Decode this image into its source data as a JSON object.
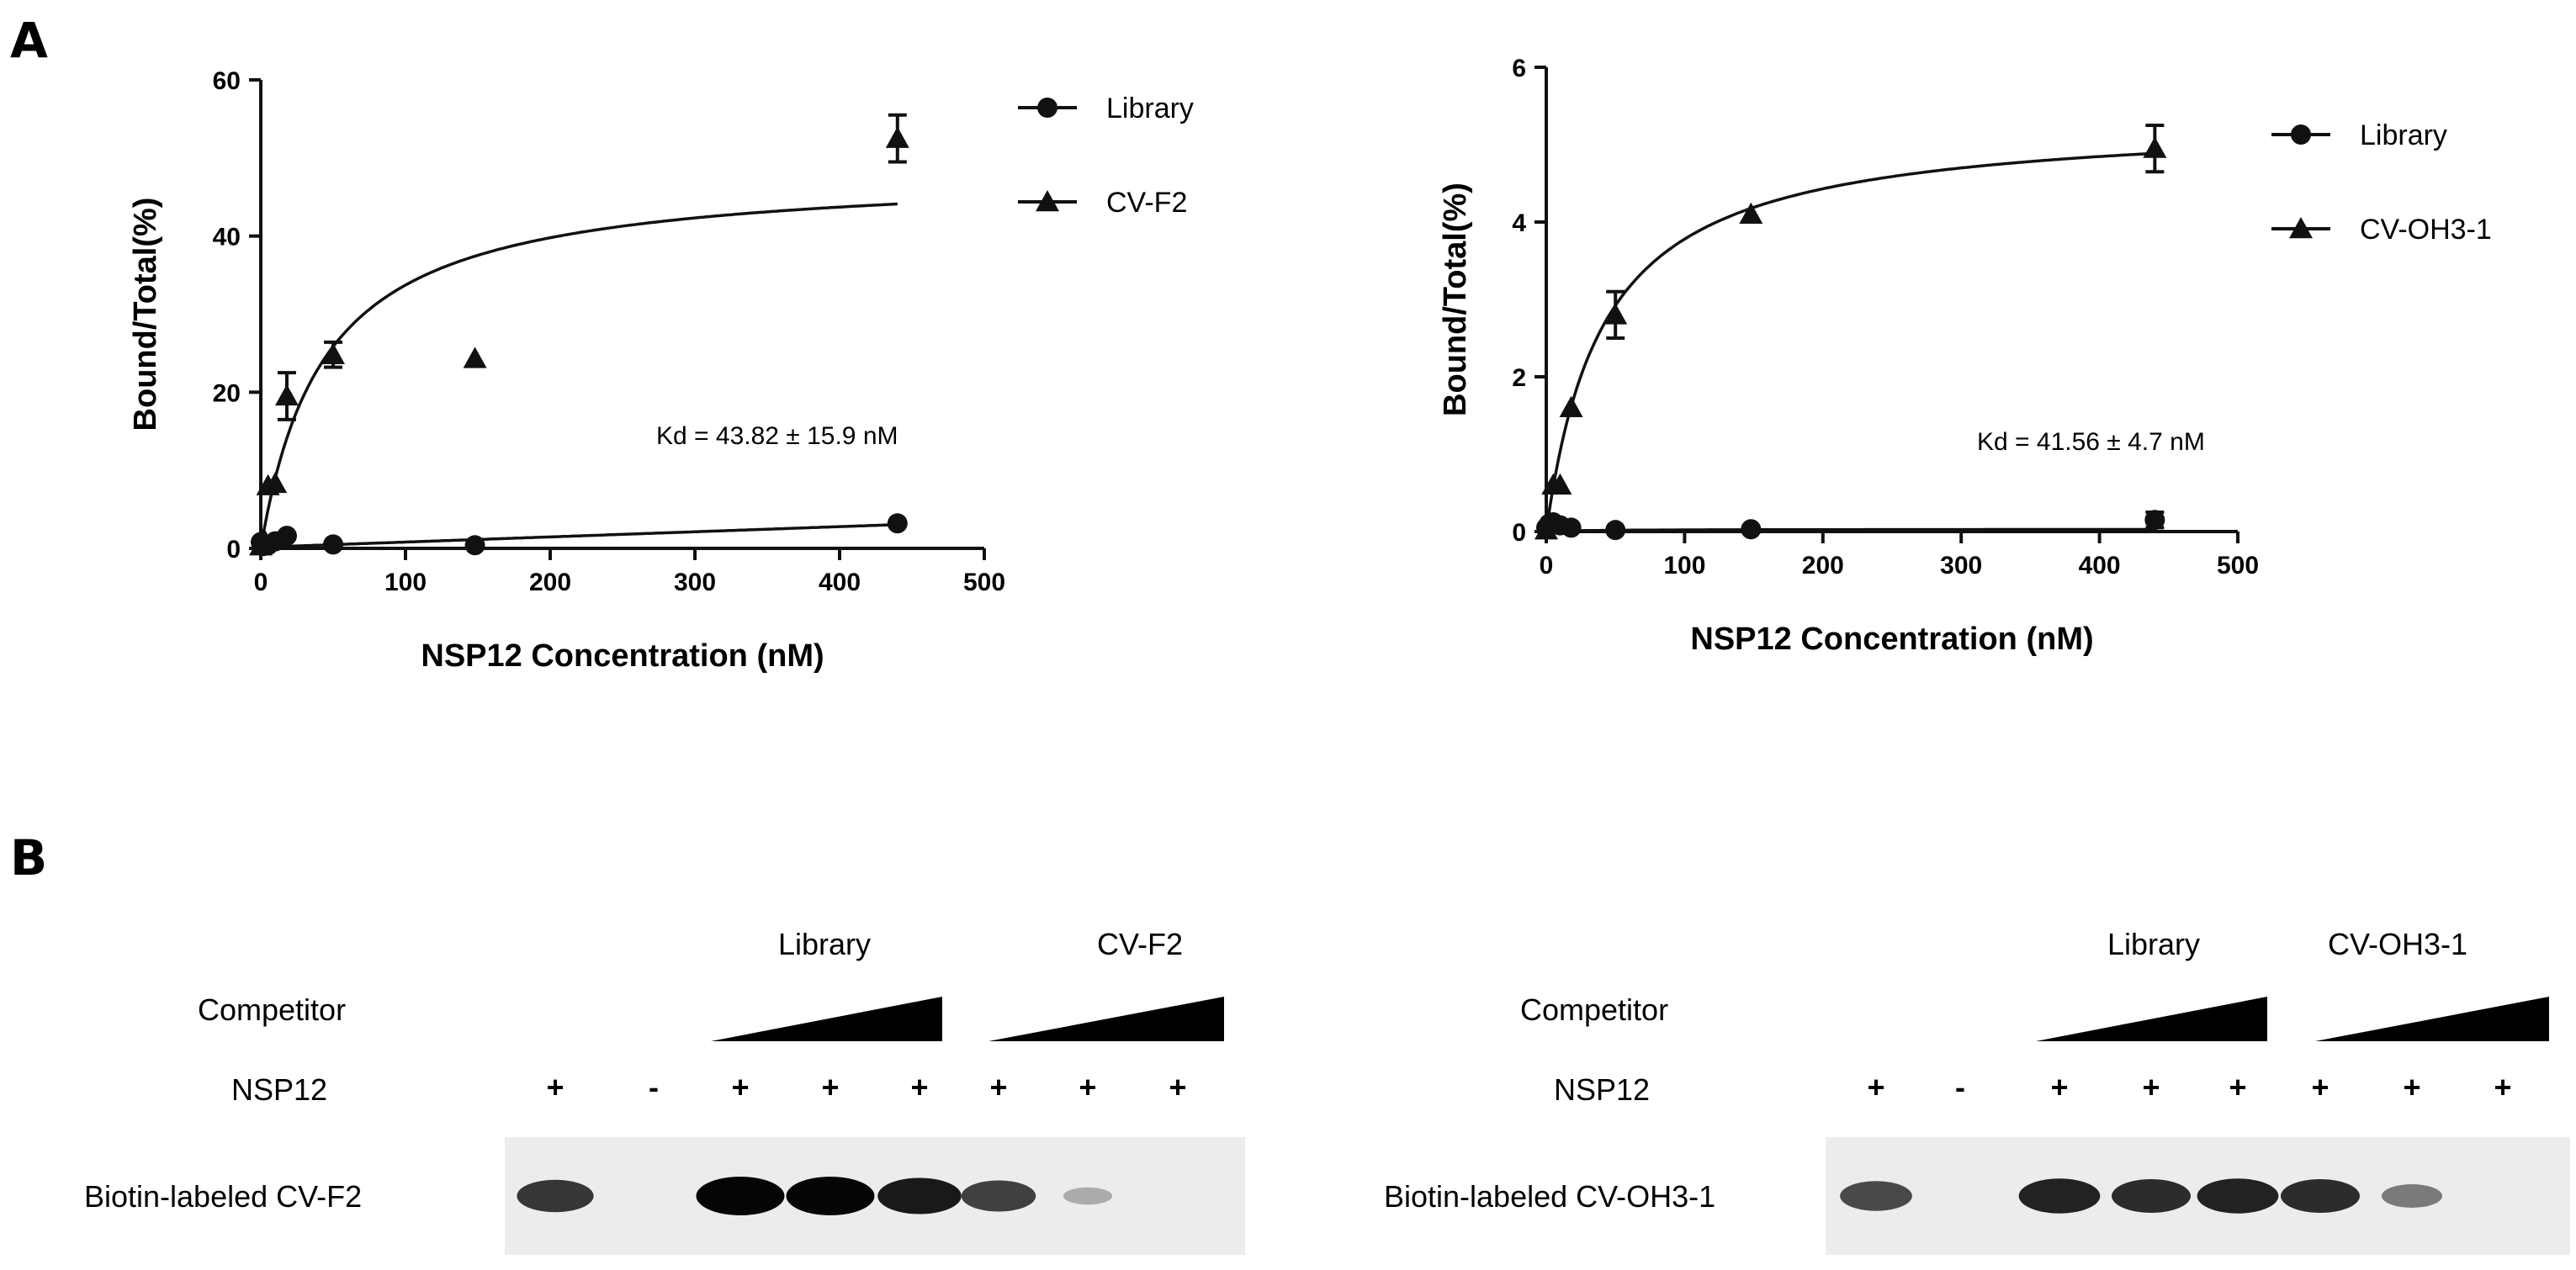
{
  "panel_labels": {
    "a": "A",
    "b": "B"
  },
  "chart_data": [
    {
      "type": "scatter",
      "xlabel": "NSP12 Concentration (nM)",
      "ylabel": "Bound/Total(%)",
      "xlim": [
        0,
        500
      ],
      "ylim": [
        0,
        60
      ],
      "xticks": [
        "0",
        "100",
        "200",
        "300",
        "400",
        "500"
      ],
      "yticks": [
        "0",
        "20",
        "40",
        "60"
      ],
      "xtick_values": [
        0,
        100,
        200,
        300,
        400,
        500
      ],
      "ytick_values": [
        0,
        20,
        40,
        60
      ],
      "annotation": "Kd = 43.82 ± 15.9 nM",
      "legend_position": "top-right",
      "series": [
        {
          "name": "Library",
          "marker": "circle",
          "x": [
            0,
            2,
            5,
            10,
            18,
            50,
            148,
            440
          ],
          "y": [
            0.8,
            0.3,
            0.4,
            0.9,
            1.6,
            0.5,
            0.4,
            3.2
          ],
          "err": [
            0,
            0,
            0,
            0,
            0,
            0,
            0,
            0
          ],
          "fit_bmax": 3.8,
          "fit_kd": 90,
          "fit_linear": true
        },
        {
          "name": "CV-F2",
          "marker": "triangle",
          "x": [
            0,
            2,
            5,
            10,
            18,
            50,
            148,
            440
          ],
          "y": [
            0.3,
            1.2,
            8.0,
            8.3,
            19.5,
            24.8,
            24.3,
            52.5
          ],
          "err": [
            0,
            0,
            0,
            0,
            3.0,
            1.6,
            0,
            3.0
          ],
          "fit_bmax": 48.5,
          "fit_kd": 43.82
        }
      ]
    },
    {
      "type": "scatter",
      "xlabel": "NSP12 Concentration (nM)",
      "ylabel": "Bound/Total(%)",
      "xlim": [
        0,
        500
      ],
      "ylim": [
        0,
        6
      ],
      "xticks": [
        "0",
        "100",
        "200",
        "300",
        "400",
        "500"
      ],
      "yticks": [
        "0",
        "2",
        "4",
        "6"
      ],
      "xtick_values": [
        0,
        100,
        200,
        300,
        400,
        500
      ],
      "ytick_values": [
        0,
        2,
        4,
        6
      ],
      "annotation": "Kd = 41.56 ± 4.7 nM",
      "legend_position": "top-right",
      "series": [
        {
          "name": "Library",
          "marker": "circle",
          "x": [
            0,
            2,
            5,
            10,
            18,
            50,
            148,
            440
          ],
          "y": [
            0.05,
            0.1,
            0.12,
            0.08,
            0.05,
            0.02,
            0.03,
            0.15
          ],
          "err": [
            0,
            0,
            0,
            0,
            0,
            0,
            0,
            0.1
          ],
          "fit_bmax": 0.03,
          "fit_kd": 40
        },
        {
          "name": "CV-OH3-1",
          "marker": "triangle",
          "x": [
            0,
            2,
            5,
            10,
            18,
            50,
            148,
            440
          ],
          "y": [
            0.02,
            0.1,
            0.6,
            0.6,
            1.6,
            2.8,
            4.1,
            4.95
          ],
          "err": [
            0,
            0,
            0,
            0,
            0,
            0.3,
            0,
            0.3
          ],
          "fit_bmax": 5.35,
          "fit_kd": 41.56
        }
      ]
    }
  ],
  "blots": [
    {
      "group_labels": [
        "Library",
        "CV-F2"
      ],
      "competitor_label": "Competitor",
      "protein_label": "NSP12",
      "lane_signs": [
        "+",
        "-",
        "+",
        "+",
        "+",
        "+",
        "+",
        "+"
      ],
      "row_label": "Biotin-labeled  CV-F2",
      "band_intensities": [
        0.75,
        0,
        1.0,
        1.0,
        0.9,
        0.7,
        0.15,
        0
      ]
    },
    {
      "group_labels": [
        "Library",
        "CV-OH3-1"
      ],
      "competitor_label": "Competitor",
      "protein_label": "NSP12",
      "lane_signs": [
        "+",
        "-",
        "+",
        "+",
        "+",
        "+",
        "+",
        "+"
      ],
      "row_label": "Biotin-labeled  CV-OH3-1",
      "band_intensities": [
        0.65,
        0,
        0.85,
        0.8,
        0.85,
        0.8,
        0.4,
        0
      ]
    }
  ]
}
